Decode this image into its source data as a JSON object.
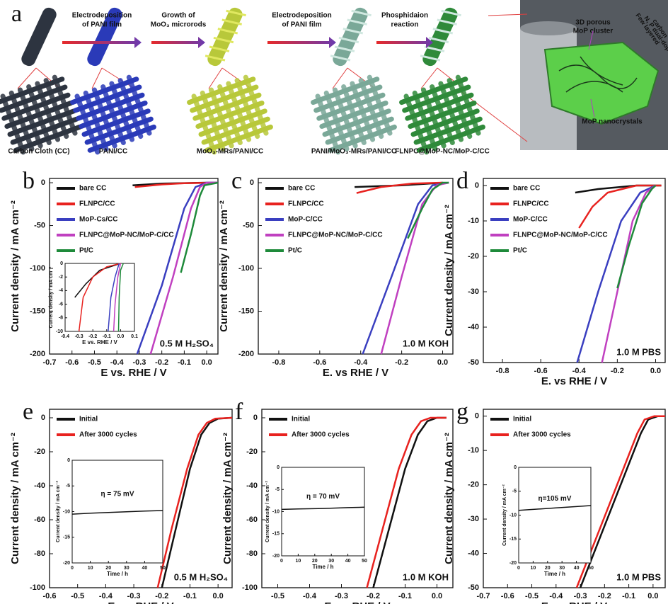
{
  "schematic": {
    "label": "a",
    "steps": [
      [
        "Electrodeposition",
        "of PANI film"
      ],
      [
        "Growth of",
        "MoO₃ microrods"
      ],
      [
        "Electrodeposition",
        "of PANI film"
      ],
      [
        "Phosphidaion",
        "reaction"
      ]
    ],
    "stages": [
      "Carbon Cloth (CC)",
      "PANI/CC",
      "MoO₃-MRs/PANI/CC",
      "PANI/MoO₃-MRs/PANI/CC",
      "FLNPC@MoP-NC/MoP-C/CC"
    ],
    "zoom": {
      "cluster": [
        "3D porous",
        "MoP cluster"
      ],
      "carbon": [
        "Few layered",
        "N, P dual-doped",
        "carbon"
      ],
      "crystals": "MoP nanocrystals"
    }
  },
  "chart_data": [
    {
      "type": "line",
      "label": "b",
      "xlabel": "E vs. RHE / V",
      "ylabel": "Current density / mA cm⁻²",
      "xlim": [
        -0.7,
        0.05
      ],
      "ylim": [
        -200,
        5
      ],
      "xticks": [
        -0.7,
        -0.6,
        -0.5,
        -0.4,
        -0.3,
        -0.2,
        -0.1,
        {
          "value": 0,
          "label": "0.0"
        }
      ],
      "yticks": [
        0,
        -50,
        -100,
        -150,
        -200
      ],
      "legend": "upper left",
      "annotation": "0.5 M H₂SO₄",
      "series": [
        {
          "name": "bare CC",
          "color": "#111111",
          "x": [
            -0.33,
            -0.2,
            0,
            0.05
          ],
          "values": [
            -3,
            -1,
            0,
            0
          ]
        },
        {
          "name": "FLNPC/CC",
          "color": "#e8221f",
          "x": [
            -0.32,
            -0.2,
            -0.1,
            0.05
          ],
          "values": [
            -5,
            -2,
            -0.5,
            0
          ]
        },
        {
          "name": "MoP-Cs/CC",
          "color": "#3a3fc0",
          "x": [
            -0.31,
            -0.2,
            -0.1,
            -0.05,
            0,
            0.05
          ],
          "values": [
            -200,
            -120,
            -30,
            -5,
            0,
            0
          ]
        },
        {
          "name": "FLNPC@MoP-NC/MoP-C/CC",
          "color": "#c040c0",
          "x": [
            -0.25,
            -0.15,
            -0.07,
            -0.03,
            0,
            0.05
          ],
          "values": [
            -200,
            -110,
            -30,
            -5,
            0,
            0
          ]
        },
        {
          "name": "Pt/C",
          "color": "#1e8a3a",
          "x": [
            -0.115,
            -0.07,
            -0.03,
            -0.01,
            0.05
          ],
          "values": [
            -105,
            -60,
            -15,
            -3,
            0
          ]
        }
      ],
      "inset": {
        "xlabel": "E vs. RHE / V",
        "ylabel": "Current density / mA cm⁻²",
        "xlim": [
          -0.4,
          0.1
        ],
        "ylim": [
          -10,
          0
        ],
        "xticks": [
          -0.4,
          -0.3,
          -0.2,
          -0.1,
          {
            "value": 0,
            "label": "0.0"
          },
          0.1
        ],
        "yticks": [
          0,
          -2,
          -4,
          -6,
          -8,
          -10
        ],
        "series": [
          {
            "color": "#111111",
            "x": [
              -0.33,
              -0.25,
              -0.15,
              0
            ],
            "values": [
              -5,
              -3,
              -1,
              0
            ]
          },
          {
            "color": "#e8221f",
            "x": [
              -0.3,
              -0.27,
              -0.2,
              -0.1,
              0
            ],
            "values": [
              -10,
              -5,
              -2,
              -0.5,
              0
            ]
          },
          {
            "color": "#3a3fc0",
            "x": [
              -0.09,
              -0.07,
              -0.04,
              -0.01
            ],
            "values": [
              -10,
              -5,
              -2,
              0
            ]
          },
          {
            "color": "#c040c0",
            "x": [
              -0.05,
              -0.04,
              -0.02,
              0
            ],
            "values": [
              -10,
              -6,
              -2,
              0
            ]
          },
          {
            "color": "#1e8a3a",
            "x": [
              -0.015,
              -0.01,
              0,
              0.02
            ],
            "values": [
              -10,
              -5,
              -1,
              0
            ]
          }
        ]
      }
    },
    {
      "type": "line",
      "label": "c",
      "xlabel": "E. vs RHE / V",
      "ylabel": "Current density / mA cm⁻²",
      "xlim": [
        -0.9,
        0.05
      ],
      "ylim": [
        -200,
        5
      ],
      "xticks": [
        -0.8,
        -0.6,
        -0.4,
        -0.2,
        {
          "value": 0,
          "label": "0.0"
        }
      ],
      "yticks": [
        0,
        -50,
        -100,
        -150,
        -200
      ],
      "legend": "upper left",
      "annotation": "1.0 M KOH",
      "series": [
        {
          "name": "bare CC",
          "color": "#111111",
          "x": [
            -0.43,
            -0.2,
            0
          ],
          "values": [
            -5,
            -3,
            0
          ]
        },
        {
          "name": "FLNPC/CC",
          "color": "#e8221f",
          "x": [
            -0.42,
            -0.3,
            -0.15,
            0
          ],
          "values": [
            -12,
            -5,
            -1,
            0
          ]
        },
        {
          "name": "MoP-C/CC",
          "color": "#3a3fc0",
          "x": [
            -0.39,
            -0.25,
            -0.12,
            -0.05,
            0.03
          ],
          "values": [
            -200,
            -110,
            -25,
            -3,
            0
          ]
        },
        {
          "name": "FLNPC@MoP-NC/MoP-C/CC",
          "color": "#c040c0",
          "x": [
            -0.3,
            -0.2,
            -0.1,
            -0.03,
            0.03
          ],
          "values": [
            -200,
            -110,
            -25,
            -3,
            0
          ]
        },
        {
          "name": "Pt/C",
          "color": "#1e8a3a",
          "x": [
            -0.17,
            -0.1,
            -0.05,
            0,
            0.03
          ],
          "values": [
            -65,
            -30,
            -8,
            0,
            0
          ]
        }
      ]
    },
    {
      "type": "line",
      "label": "d",
      "xlabel": "E. vs RHE / V",
      "ylabel": "Current density / mA cm⁻²",
      "xlim": [
        -0.9,
        0.05
      ],
      "ylim": [
        -50,
        2
      ],
      "xticks": [
        -0.8,
        -0.6,
        -0.4,
        -0.2,
        {
          "value": 0,
          "label": "0.0"
        }
      ],
      "yticks": [
        0,
        -10,
        -20,
        -30,
        -40,
        -50
      ],
      "legend": "upper left",
      "annotation": "1.0 M PBS",
      "series": [
        {
          "name": "bare CC",
          "color": "#111111",
          "x": [
            -0.42,
            -0.3,
            -0.1,
            0.03
          ],
          "values": [
            -2,
            -1,
            0,
            0
          ]
        },
        {
          "name": "FLNPC/CC",
          "color": "#e8221f",
          "x": [
            -0.4,
            -0.33,
            -0.25,
            -0.1,
            0.03
          ],
          "values": [
            -12,
            -6,
            -2,
            0,
            0
          ]
        },
        {
          "name": "MoP-C/CC",
          "color": "#3a3fc0",
          "x": [
            -0.41,
            -0.3,
            -0.18,
            -0.08,
            0
          ],
          "values": [
            -50,
            -30,
            -10,
            -2,
            0
          ]
        },
        {
          "name": "FLNPC@MoP-NC/MoP-C/CC",
          "color": "#c040c0",
          "x": [
            -0.28,
            -0.2,
            -0.12,
            -0.05,
            0
          ],
          "values": [
            -50,
            -30,
            -10,
            -2,
            0
          ]
        },
        {
          "name": "Pt/C",
          "color": "#1e8a3a",
          "x": [
            -0.2,
            -0.14,
            -0.07,
            -0.02,
            0
          ],
          "values": [
            -29,
            -17,
            -5,
            -1,
            0
          ]
        }
      ]
    },
    {
      "type": "line",
      "label": "e",
      "xlabel": "E vs. RHE / V",
      "ylabel": "Current density / mA cm⁻²",
      "xlim": [
        -0.6,
        0.05
      ],
      "ylim": [
        -100,
        5
      ],
      "xticks": [
        -0.6,
        -0.5,
        -0.4,
        -0.3,
        -0.2,
        -0.1,
        {
          "value": 0,
          "label": "0.0"
        }
      ],
      "yticks": [
        0,
        -20,
        -40,
        -60,
        -80,
        -100
      ],
      "legend": "upper left",
      "annotation": "0.5 M H₂SO₄",
      "series": [
        {
          "name": "Initial",
          "color": "#111111",
          "x": [
            -0.2,
            -0.15,
            -0.1,
            -0.06,
            -0.03,
            0,
            0.05
          ],
          "values": [
            -100,
            -65,
            -30,
            -10,
            -3,
            -0.5,
            0
          ]
        },
        {
          "name": "After 3000 cycles",
          "color": "#e8221f",
          "x": [
            -0.215,
            -0.165,
            -0.11,
            -0.07,
            -0.04,
            -0.01,
            0.05
          ],
          "values": [
            -100,
            -65,
            -30,
            -10,
            -3,
            -0.5,
            0
          ]
        }
      ],
      "inset": {
        "xlabel": "Time / h",
        "ylabel": "Current density / mA cm⁻²",
        "xlim": [
          0,
          50
        ],
        "ylim": [
          -20,
          0
        ],
        "xticks": [
          0,
          10,
          20,
          30,
          40,
          50
        ],
        "yticks": [
          0,
          -5,
          -10,
          -15,
          -20
        ],
        "annotation": "η = 75 mV",
        "series": [
          {
            "color": "#111111",
            "x": [
              0,
              10,
              25,
              40,
              50
            ],
            "values": [
              -10.5,
              -10.3,
              -10.1,
              -9.9,
              -9.8
            ]
          }
        ]
      }
    },
    {
      "type": "line",
      "label": "f",
      "xlabel": "E vs. RHE / V",
      "ylabel": "Current density / mA cm⁻²",
      "xlim": [
        -0.55,
        0.05
      ],
      "ylim": [
        -100,
        5
      ],
      "xticks": [
        -0.5,
        -0.4,
        -0.3,
        -0.2,
        -0.1,
        {
          "value": 0,
          "label": "0.0"
        }
      ],
      "yticks": [
        0,
        -20,
        -40,
        -60,
        -80,
        -100
      ],
      "legend": "upper left",
      "annotation": "1.0 M KOH",
      "series": [
        {
          "name": "Initial",
          "color": "#111111",
          "x": [
            -0.2,
            -0.15,
            -0.1,
            -0.06,
            -0.03,
            0,
            0.03
          ],
          "values": [
            -100,
            -65,
            -30,
            -10,
            -2,
            0,
            0
          ]
        },
        {
          "name": "After 3000 cycles",
          "color": "#e8221f",
          "x": [
            -0.22,
            -0.17,
            -0.12,
            -0.08,
            -0.05,
            -0.02,
            0.03
          ],
          "values": [
            -100,
            -65,
            -30,
            -10,
            -2,
            0,
            0
          ]
        }
      ],
      "inset": {
        "xlabel": "Time / h",
        "ylabel": "Current density / mA cm⁻²",
        "xlim": [
          0,
          50
        ],
        "ylim": [
          -20,
          0
        ],
        "xticks": [
          0,
          10,
          20,
          30,
          40,
          50
        ],
        "yticks": [
          0,
          -5,
          -10,
          -15,
          -20
        ],
        "annotation": "η = 70 mV",
        "series": [
          {
            "color": "#111111",
            "x": [
              0,
              10,
              25,
              40,
              50
            ],
            "values": [
              -9.5,
              -9.4,
              -9.3,
              -9.1,
              -9
            ]
          }
        ]
      }
    },
    {
      "type": "line",
      "label": "g",
      "xlabel": "E vs. RHE / V",
      "ylabel": "Current density / mA cm⁻²",
      "xlim": [
        -0.7,
        0.05
      ],
      "ylim": [
        -50,
        2
      ],
      "xticks": [
        -0.7,
        -0.6,
        -0.5,
        -0.4,
        -0.3,
        -0.2,
        -0.1,
        {
          "value": 0,
          "label": "0.0"
        }
      ],
      "yticks": [
        0,
        -10,
        -20,
        -30,
        -40,
        -50
      ],
      "legend": "upper left",
      "annotation": "1.0 M PBS",
      "series": [
        {
          "name": "Initial",
          "color": "#111111",
          "x": [
            -0.3,
            -0.2,
            -0.1,
            -0.05,
            -0.02,
            0.02,
            0.05
          ],
          "values": [
            -50,
            -32,
            -14,
            -5,
            -1,
            0,
            0
          ]
        },
        {
          "name": "After 3000 cycles",
          "color": "#e8221f",
          "x": [
            -0.315,
            -0.215,
            -0.115,
            -0.065,
            -0.035,
            0.005,
            0.05
          ],
          "values": [
            -50,
            -32,
            -14,
            -5,
            -1,
            0,
            0
          ]
        }
      ],
      "inset": {
        "xlabel": "Time / h",
        "ylabel": "Current density / mA cm⁻²",
        "xlim": [
          0,
          50
        ],
        "ylim": [
          -20,
          0
        ],
        "xticks": [
          0,
          10,
          20,
          30,
          40,
          50
        ],
        "yticks": [
          0,
          -5,
          -10,
          -15,
          -20
        ],
        "annotation": "η=105 mV",
        "series": [
          {
            "color": "#111111",
            "x": [
              0,
              10,
              25,
              40,
              50
            ],
            "values": [
              -9,
              -8.8,
              -8.5,
              -8.2,
              -8
            ]
          }
        ]
      }
    }
  ]
}
